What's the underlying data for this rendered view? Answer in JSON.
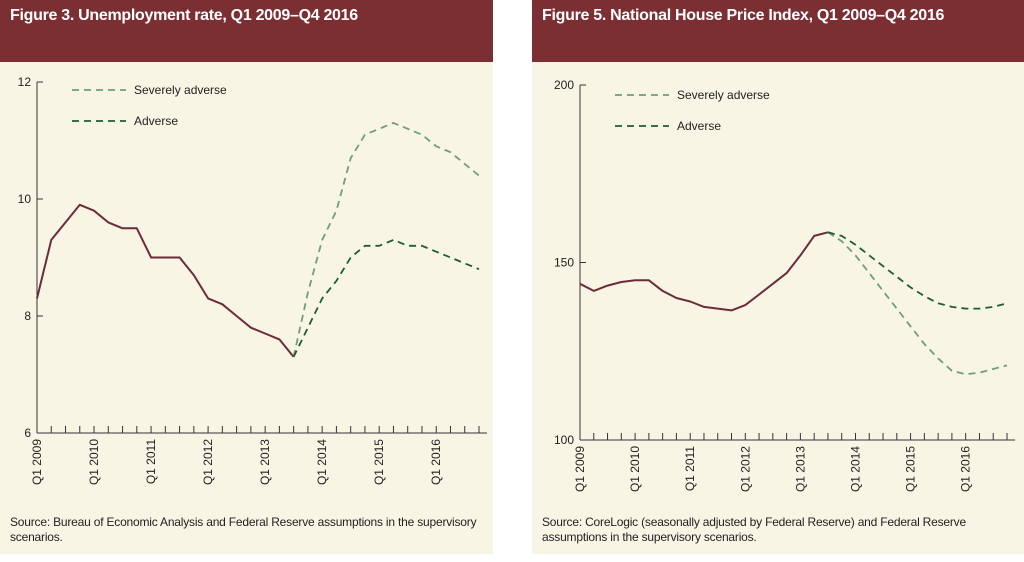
{
  "chart_data": [
    {
      "type": "line",
      "title": "Figure 3. Unemployment rate, Q1 2009–Q4 2016",
      "source": "Source: Bureau of Economic Analysis and Federal Reserve assumptions in the supervisory scenarios.",
      "categories": [
        "Q1 2009",
        null,
        null,
        null,
        "Q1 2010",
        null,
        null,
        null,
        "Q1 2011",
        null,
        null,
        null,
        "Q1 2012",
        null,
        null,
        null,
        "Q1 2013",
        null,
        null,
        null,
        "Q1 2014",
        null,
        null,
        null,
        "Q1 2015",
        null,
        null,
        null,
        "Q1 2016",
        null,
        null,
        null
      ],
      "ylim": [
        6,
        12
      ],
      "yticks": [
        6,
        8,
        10,
        12
      ],
      "grid": false,
      "legend": "upper left",
      "series": [
        {
          "color": "#6b2c3a",
          "dash": false,
          "values": [
            8.3,
            9.3,
            9.6,
            9.9,
            9.8,
            9.6,
            9.5,
            9.5,
            9.0,
            9.0,
            9.0,
            8.7,
            8.3,
            8.2,
            8.0,
            7.8,
            7.7,
            7.6,
            7.3,
            null,
            null,
            null,
            null,
            null,
            null,
            null,
            null,
            null,
            null,
            null,
            null,
            null
          ]
        },
        {
          "name": "Severely adverse",
          "color": "#6f9e7f",
          "dash": true,
          "values": [
            null,
            null,
            null,
            null,
            null,
            null,
            null,
            null,
            null,
            null,
            null,
            null,
            null,
            null,
            null,
            null,
            null,
            null,
            7.3,
            8.4,
            9.3,
            9.8,
            10.7,
            11.1,
            11.2,
            11.3,
            11.2,
            11.1,
            10.9,
            10.8,
            10.6,
            10.4
          ]
        },
        {
          "name": "Adverse",
          "color": "#1c5c3a",
          "dash": true,
          "values": [
            null,
            null,
            null,
            null,
            null,
            null,
            null,
            null,
            null,
            null,
            null,
            null,
            null,
            null,
            null,
            null,
            null,
            null,
            7.3,
            7.8,
            8.3,
            8.6,
            9.0,
            9.2,
            9.2,
            9.3,
            9.2,
            9.2,
            9.1,
            9.0,
            8.9,
            8.8
          ]
        }
      ]
    },
    {
      "type": "line",
      "title": "Figure 5. National House Price Index, Q1 2009–Q4 2016",
      "source": "Source: CoreLogic (seasonally adjusted by Federal Reserve) and Federal Reserve assumptions in the supervisory scenarios.",
      "categories": [
        "Q1 2009",
        null,
        null,
        null,
        "Q1 2010",
        null,
        null,
        null,
        "Q1 2011",
        null,
        null,
        null,
        "Q1 2012",
        null,
        null,
        null,
        "Q1 2013",
        null,
        null,
        null,
        "Q1 2014",
        null,
        null,
        null,
        "Q1 2015",
        null,
        null,
        null,
        "Q1 2016",
        null,
        null,
        null
      ],
      "ylim": [
        100,
        200
      ],
      "yticks": [
        100,
        150,
        200
      ],
      "grid": false,
      "legend": "upper left",
      "series": [
        {
          "color": "#6b2c3a",
          "dash": false,
          "values": [
            144,
            142,
            143.5,
            144.5,
            145,
            145,
            142,
            140,
            139,
            137.5,
            137,
            136.5,
            138,
            141,
            144,
            147,
            152,
            157.5,
            158.5,
            null,
            null,
            null,
            null,
            null,
            null,
            null,
            null,
            null,
            null,
            null,
            null,
            null
          ]
        },
        {
          "name": "Severely adverse",
          "color": "#6f9e7f",
          "dash": true,
          "values": [
            null,
            null,
            null,
            null,
            null,
            null,
            null,
            null,
            null,
            null,
            null,
            null,
            null,
            null,
            null,
            null,
            null,
            null,
            158.5,
            156,
            152,
            147,
            142,
            137,
            132,
            127,
            123,
            119.5,
            118.5,
            119,
            120,
            121
          ]
        },
        {
          "name": "Adverse",
          "color": "#1c5c3a",
          "dash": true,
          "values": [
            null,
            null,
            null,
            null,
            null,
            null,
            null,
            null,
            null,
            null,
            null,
            null,
            null,
            null,
            null,
            null,
            null,
            null,
            158.5,
            157.5,
            155,
            152,
            149,
            146,
            143,
            140.5,
            138.5,
            137.5,
            137,
            137,
            137.5,
            138.5
          ]
        }
      ]
    }
  ]
}
